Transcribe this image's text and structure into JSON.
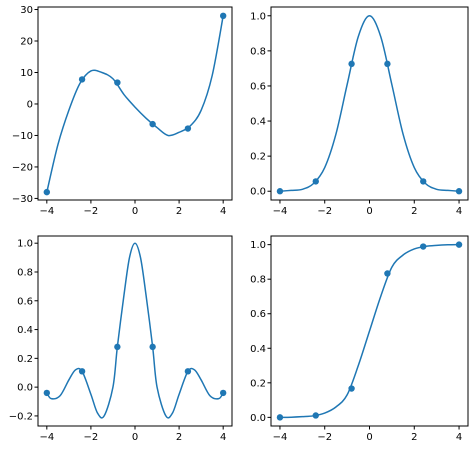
{
  "colors": {
    "series": "#1f77b4",
    "axis": "#000000",
    "background": "#ffffff"
  },
  "chart_data": [
    {
      "type": "line",
      "title": "",
      "xlabel": "",
      "ylabel": "",
      "xlim": [
        -4.4,
        4.4
      ],
      "ylim": [
        -30.5,
        30.8
      ],
      "xticks": [
        -4,
        -2,
        0,
        2,
        4
      ],
      "yticks": [
        -30,
        -20,
        -10,
        0,
        10,
        20,
        30
      ],
      "ytick_labels": [
        "−30",
        "−20",
        "−10",
        "0",
        "10",
        "20",
        "30"
      ],
      "xtick_labels": [
        "−4",
        "−2",
        "0",
        "2",
        "4"
      ],
      "grid": false,
      "markers": {
        "x": [
          -4.0,
          -2.4,
          -0.8,
          0.8,
          2.4,
          4.0
        ],
        "y": [
          -28.0,
          7.8,
          6.8,
          -6.4,
          -7.8,
          28.0
        ]
      },
      "curve": {
        "x": [
          -4.0,
          -3.5,
          -3.0,
          -2.5,
          -2.0,
          -1.5,
          -1.0,
          -0.5,
          0.0,
          0.5,
          1.0,
          1.5,
          2.0,
          2.5,
          3.0,
          3.5,
          4.0
        ],
        "y": [
          -28.0,
          -13.0,
          -2.0,
          6.5,
          10.5,
          10.0,
          8.0,
          3.0,
          -1.0,
          -4.5,
          -7.5,
          -10.0,
          -9.0,
          -7.0,
          -2.0,
          9.0,
          28.0
        ]
      }
    },
    {
      "type": "line",
      "title": "",
      "xlabel": "",
      "ylabel": "",
      "xlim": [
        -4.4,
        4.4
      ],
      "ylim": [
        -0.05,
        1.05
      ],
      "xticks": [
        -4,
        -2,
        0,
        2,
        4
      ],
      "yticks": [
        0.0,
        0.2,
        0.4,
        0.6,
        0.8,
        1.0
      ],
      "ytick_labels": [
        "0.0",
        "0.2",
        "0.4",
        "0.6",
        "0.8",
        "1.0"
      ],
      "xtick_labels": [
        "−4",
        "−2",
        "0",
        "2",
        "4"
      ],
      "grid": false,
      "markers": {
        "x": [
          -4.0,
          -2.4,
          -0.8,
          0.8,
          2.4,
          4.0
        ],
        "y": [
          0.0,
          0.056,
          0.726,
          0.726,
          0.056,
          0.0
        ]
      },
      "curve": {
        "x": [
          -4.0,
          -3.5,
          -3.0,
          -2.5,
          -2.0,
          -1.5,
          -1.0,
          -0.5,
          0.0,
          0.5,
          1.0,
          1.5,
          2.0,
          2.5,
          3.0,
          3.5,
          4.0
        ],
        "y": [
          0.0,
          0.005,
          0.011,
          0.044,
          0.135,
          0.325,
          0.607,
          0.882,
          1.0,
          0.882,
          0.607,
          0.325,
          0.135,
          0.044,
          0.011,
          0.005,
          0.0
        ]
      }
    },
    {
      "type": "line",
      "title": "",
      "xlabel": "",
      "ylabel": "",
      "xlim": [
        -4.4,
        4.4
      ],
      "ylim": [
        -0.27,
        1.05
      ],
      "xticks": [
        -4,
        -2,
        0,
        2,
        4
      ],
      "yticks": [
        -0.2,
        0.0,
        0.2,
        0.4,
        0.6,
        0.8,
        1.0
      ],
      "ytick_labels": [
        "−0.2",
        "0.0",
        "0.2",
        "0.4",
        "0.6",
        "0.8",
        "1.0"
      ],
      "xtick_labels": [
        "−4",
        "−2",
        "0",
        "2",
        "4"
      ],
      "grid": false,
      "markers": {
        "x": [
          -4.0,
          -2.4,
          -0.8,
          0.8,
          2.4,
          4.0
        ],
        "y": [
          -0.04,
          0.11,
          0.28,
          0.28,
          0.11,
          -0.04
        ]
      },
      "curve": {
        "x": [
          -4.0,
          -3.8,
          -3.4,
          -3.0,
          -2.7,
          -2.4,
          -2.0,
          -1.7,
          -1.4,
          -1.0,
          -0.8,
          -0.5,
          -0.25,
          0.0,
          0.25,
          0.5,
          0.8,
          1.0,
          1.4,
          1.7,
          2.0,
          2.4,
          2.7,
          3.0,
          3.4,
          3.8,
          4.0
        ],
        "y": [
          -0.04,
          -0.08,
          -0.06,
          0.05,
          0.12,
          0.11,
          -0.05,
          -0.18,
          -0.2,
          0.0,
          0.28,
          0.64,
          0.9,
          1.0,
          0.9,
          0.64,
          0.28,
          0.0,
          -0.2,
          -0.18,
          -0.05,
          0.11,
          0.12,
          0.05,
          -0.06,
          -0.08,
          -0.04
        ]
      }
    },
    {
      "type": "line",
      "title": "",
      "xlabel": "",
      "ylabel": "",
      "xlim": [
        -4.4,
        4.4
      ],
      "ylim": [
        -0.05,
        1.05
      ],
      "xticks": [
        -4,
        -2,
        0,
        2,
        4
      ],
      "yticks": [
        0.0,
        0.2,
        0.4,
        0.6,
        0.8,
        1.0
      ],
      "ytick_labels": [
        "0.0",
        "0.2",
        "0.4",
        "0.6",
        "0.8",
        "1.0"
      ],
      "xtick_labels": [
        "−4",
        "−2",
        "0",
        "2",
        "4"
      ],
      "grid": false,
      "markers": {
        "x": [
          -4.0,
          -2.4,
          -0.8,
          0.8,
          2.4,
          4.0
        ],
        "y": [
          0.0,
          0.011,
          0.167,
          0.833,
          0.989,
          1.0
        ]
      },
      "curve": {
        "x": [
          -4.0,
          -3.5,
          -3.0,
          -2.5,
          -2.0,
          -1.5,
          -1.0,
          -0.5,
          0.0,
          0.5,
          1.0,
          1.5,
          2.0,
          2.5,
          3.0,
          3.5,
          4.0
        ],
        "y": [
          0.0,
          0.001,
          0.004,
          0.009,
          0.025,
          0.06,
          0.13,
          0.3,
          0.5,
          0.7,
          0.87,
          0.94,
          0.975,
          0.99,
          0.996,
          0.999,
          1.0
        ]
      }
    }
  ]
}
